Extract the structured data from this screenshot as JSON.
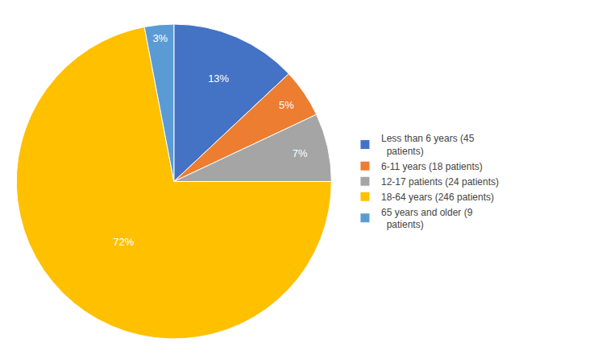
{
  "chart_data": {
    "type": "pie",
    "categories": [
      "Less than 6 years (45\n  patients)",
      "6-11 years (18 patients)",
      "12-17 patients (24 patients)",
      "18-64 years (246 patients)",
      "65 years and older (9\n  patients)"
    ],
    "values": [
      13,
      5,
      7,
      72,
      3
    ],
    "value_labels": [
      "13%",
      "5%",
      "7%",
      "72%",
      "3%"
    ],
    "colors": [
      "#4472C4",
      "#ED7D31",
      "#A5A5A5",
      "#FFC000",
      "#5B9BD5"
    ],
    "data_labels": true,
    "legend": "right"
  }
}
